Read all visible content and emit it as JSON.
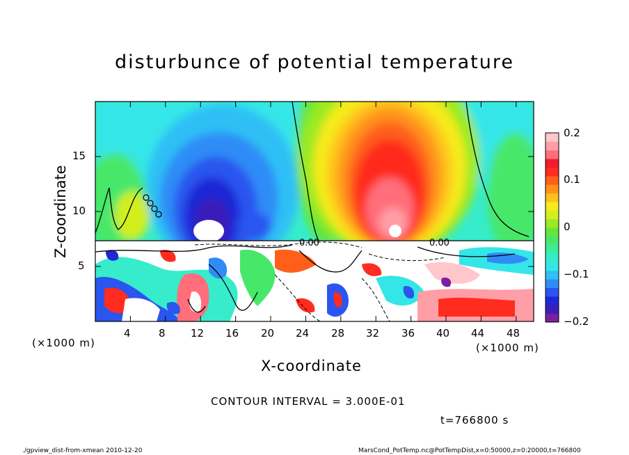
{
  "chart_data": {
    "type": "heatmap",
    "title": "disturbunce of potential temperature",
    "xlabel": "X-coordinate",
    "ylabel": "Z-coordinate",
    "x_unit": "(×1000 m)",
    "y_unit": "(×1000 m)",
    "xlim": [
      0,
      50
    ],
    "ylim": [
      0,
      20
    ],
    "x_ticks": [
      "4",
      "8",
      "12",
      "16",
      "20",
      "24",
      "28",
      "32",
      "36",
      "40",
      "44",
      "48"
    ],
    "y_ticks": [
      "5",
      "10",
      "15"
    ],
    "colorbar": {
      "range": [
        -0.2,
        0.2
      ],
      "ticks": [
        "0.2",
        "0.1",
        "0",
        "−0.1",
        "−0.2"
      ],
      "colors": [
        "#7a1fa2",
        "#3b1fb8",
        "#1e28d6",
        "#2b55ef",
        "#2f8cf7",
        "#2fc0f5",
        "#35e6e8",
        "#36eccb",
        "#3bec9a",
        "#47e86a",
        "#64e63a",
        "#9bea23",
        "#d2ee1f",
        "#f6ea1f",
        "#ffc21a",
        "#ff931a",
        "#ff5f1a",
        "#ff2c1f",
        "#f21d2b",
        "#ff6e7a",
        "#ff9ea6",
        "#ffc6cc"
      ]
    },
    "contour_labels": [
      "0.00",
      "0.00"
    ]
  },
  "contour_interval": "CONTOUR INTERVAL = 3.000E-01",
  "time_label": "t=766800 s",
  "footer": {
    "left": "./gpview_dist-from-xmean   2010-12-20",
    "right": "MarsCond_PotTemp.nc@PotTempDist,x=0:50000,z=0:20000,t=766800"
  }
}
